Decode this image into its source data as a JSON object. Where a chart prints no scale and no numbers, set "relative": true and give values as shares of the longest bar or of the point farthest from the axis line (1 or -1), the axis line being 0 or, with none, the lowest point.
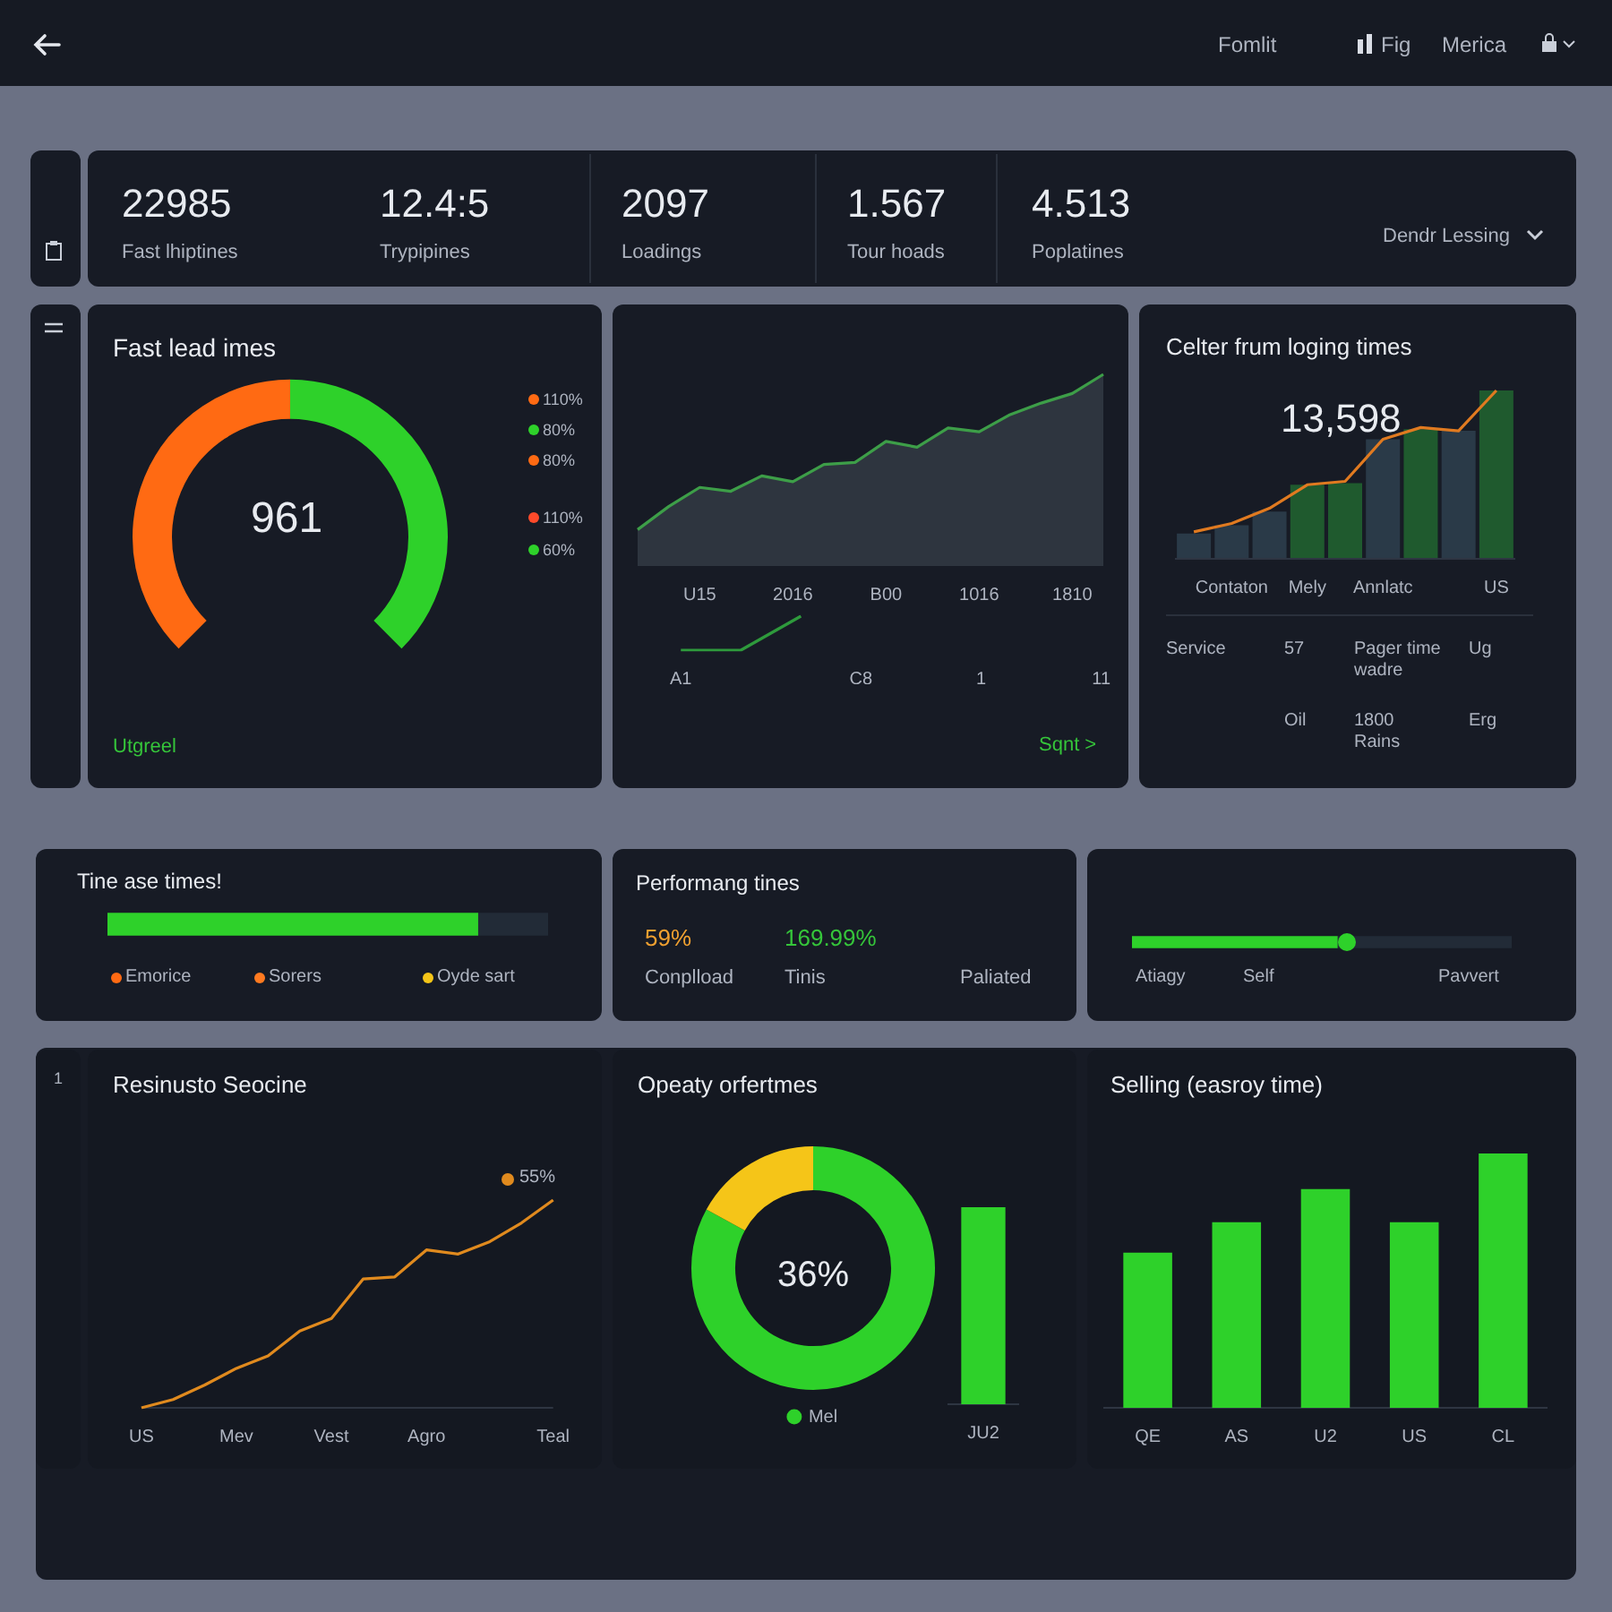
{
  "chart_data": [
    {
      "type": "other",
      "annotations": [
        "Fomlit",
        "Fig",
        "Merica",
        "22985",
        "Fast lhiptines",
        "12.4:5",
        "Trypipines",
        "2097",
        "Loadings",
        "1.567",
        "Tour hoads",
        "4.513",
        "Poplatines",
        "Dendr Lessing"
      ]
    },
    {
      "type": "donut",
      "title": "Fast lead imes",
      "categories": [
        null,
        null
      ],
      "values": [
        50,
        50
      ],
      "colors": [
        "#ff6a13",
        "#2ed12a"
      ],
      "annotations": [
        "961",
        "110%",
        "80%",
        "80%",
        "110%",
        "60%",
        "Utgreel"
      ]
    },
    {
      "type": "area",
      "relative": true,
      "categories": [
        null,
        null,
        "U15",
        null,
        null,
        "2016",
        null,
        null,
        "B00",
        null,
        null,
        "1016",
        null,
        null,
        "1810",
        null
      ],
      "values": [
        0.19,
        0.31,
        0.41,
        0.39,
        0.47,
        0.44,
        0.53,
        0.54,
        0.65,
        0.62,
        0.72,
        0.7,
        0.79,
        0.85,
        0.9,
        1
      ],
      "color": "#3d9e48"
    },
    {
      "type": "line",
      "relative": true,
      "categories": [
        "A1",
        null,
        null,
        "C8",
        null,
        "1",
        null,
        "11"
      ],
      "values": [
        0,
        0,
        1,
        null,
        null,
        null,
        null,
        null
      ],
      "color": "#2e9a3c",
      "annotations": [
        "Sqnt >"
      ]
    },
    {
      "type": "bar",
      "title": "Celter frum loging times",
      "relative": true,
      "categories": [
        null,
        "Contaton",
        null,
        "Mely",
        null,
        "Annlatc",
        null,
        null,
        "US"
      ],
      "colors": [
        "#2a3a48",
        "#2a3a48",
        "#2a3a48",
        "#1f5a2e",
        "#1f5a2e",
        "#2a3a48",
        "#1f5a2e",
        "#2a3a48",
        "#1f5a2e"
      ],
      "values": [
        0.15,
        0.2,
        0.28,
        0.44,
        0.45,
        0.71,
        0.77,
        0.76,
        1
      ],
      "annotations": [
        "13,598",
        "Service",
        "57",
        "Pager time wadre",
        "Ug",
        "Oil",
        "1800 Rains",
        "Erg"
      ]
    },
    {
      "type": "line",
      "relative": true,
      "categories": [
        null,
        null,
        null,
        null,
        null,
        null,
        null,
        null,
        null
      ],
      "color": "#e07a20",
      "values": [
        0.16,
        0.21,
        0.3,
        0.44,
        0.46,
        0.71,
        0.78,
        0.76,
        1
      ]
    },
    {
      "type": "bar",
      "title": "Tine ase times!",
      "orientation": "horizontal",
      "stacked": true,
      "relative": true,
      "categories": [
        null
      ],
      "series": [
        {
          "color": "#2ed12a",
          "values": [
            0.84
          ]
        },
        {
          "color": "#222b37",
          "values": [
            0.16
          ]
        }
      ],
      "annotations": [
        "Emorice",
        "Sorers",
        "Oyde sart"
      ]
    },
    {
      "type": "other",
      "title": "Performang tines",
      "annotations": [
        "59%",
        "169.99%",
        "Conplload",
        "Tinis",
        "Paliated"
      ]
    },
    {
      "type": "bar",
      "orientation": "horizontal",
      "stacked": true,
      "relative": true,
      "categories": [
        null
      ],
      "series": [
        {
          "color": "#2ed12a",
          "values": [
            0.54
          ]
        },
        {
          "color": "#222b37",
          "values": [
            0.46
          ]
        }
      ],
      "annotations": [
        "Atiagy",
        "Self",
        "Pavvert"
      ]
    },
    {
      "type": "line",
      "title": "Resinusto Seocine",
      "relative": true,
      "legend": "top right",
      "categories": [
        "US",
        null,
        null,
        "Mev",
        null,
        null,
        "Vest",
        null,
        null,
        "Agro",
        null,
        null,
        null,
        "Teal"
      ],
      "series": [
        {
          "name": "55%",
          "color": "#e08a1e",
          "values": [
            0,
            0.04,
            0.11,
            0.19,
            0.25,
            0.37,
            0.43,
            0.62,
            0.63,
            0.76,
            0.74,
            0.8,
            0.89,
            1
          ]
        }
      ],
      "annotations": [
        "1"
      ]
    },
    {
      "type": "donut",
      "title": "Opeaty orfertmes",
      "legend": "bottom",
      "categories": [
        "Mel",
        null
      ],
      "values": [
        83,
        17
      ],
      "colors": [
        "#2ed12a",
        "#f5c518"
      ],
      "annotations": [
        "36%"
      ]
    },
    {
      "type": "bar",
      "relative": true,
      "categories": [
        "JU2"
      ],
      "values": [
        1
      ],
      "color": "#2ed12a"
    },
    {
      "type": "bar",
      "title": "Selling (easroy time)",
      "relative": true,
      "categories": [
        "QE",
        "AS",
        "U2",
        "US",
        "CL"
      ],
      "values": [
        0.61,
        0.73,
        0.86,
        0.73,
        1
      ],
      "color": "#2ed12a"
    }
  ]
}
